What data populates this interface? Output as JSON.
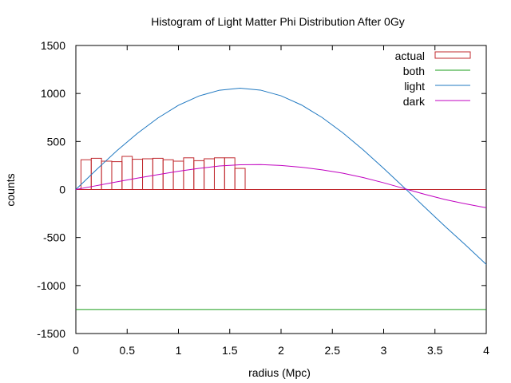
{
  "chart_data": {
    "type": "bar",
    "title": "Histogram of Light Matter Phi Distribution After 0Gy",
    "xlabel": "radius (Mpc)",
    "ylabel": "counts",
    "xlim": [
      0,
      4
    ],
    "ylim": [
      -1500,
      1500
    ],
    "x_ticks": [
      "0",
      "0.5",
      "1",
      "1.5",
      "2",
      "2.5",
      "3",
      "3.5",
      "4"
    ],
    "y_ticks": [
      "-1500",
      "-1000",
      "-500",
      "0",
      "500",
      "1000",
      "1500"
    ],
    "grid": false,
    "legend_position": "top-right",
    "histogram": {
      "name": "actual",
      "color": "#c0282d",
      "bin_width": 0.1,
      "bin_left_edges": [
        0.05,
        0.15,
        0.25,
        0.35,
        0.45,
        0.55,
        0.65,
        0.75,
        0.85,
        0.95,
        1.05,
        1.15,
        1.25,
        1.35,
        1.45,
        1.55
      ],
      "counts": [
        310,
        325,
        295,
        290,
        345,
        315,
        320,
        325,
        310,
        295,
        330,
        300,
        320,
        330,
        330,
        220
      ]
    },
    "series": [
      {
        "name": "both",
        "color": "#1a9e1a",
        "x": [
          0,
          4
        ],
        "y": [
          -1250,
          -1250
        ]
      },
      {
        "name": "light",
        "color": "#1f78c1",
        "x": [
          0,
          0.2,
          0.4,
          0.6,
          0.8,
          1.0,
          1.2,
          1.4,
          1.6,
          1.8,
          2.0,
          2.2,
          2.4,
          2.6,
          2.8,
          3.0,
          3.2,
          3.4,
          3.6,
          3.8,
          4.0
        ],
        "y": [
          0,
          206,
          404,
          585,
          745,
          877,
          974,
          1034,
          1055,
          1035,
          976,
          880,
          750,
          592,
          413,
          220,
          20,
          -184,
          -385,
          -580,
          -780
        ]
      },
      {
        "name": "dark",
        "color": "#c000c0",
        "x": [
          0,
          0.2,
          0.4,
          0.6,
          0.8,
          1.0,
          1.2,
          1.4,
          1.6,
          1.8,
          2.0,
          2.2,
          2.4,
          2.6,
          2.8,
          3.0,
          3.2,
          3.4,
          3.6,
          3.8,
          4.0
        ],
        "y": [
          0,
          40,
          80,
          118,
          155,
          190,
          220,
          245,
          258,
          260,
          250,
          232,
          205,
          170,
          125,
          70,
          10,
          -50,
          -105,
          -150,
          -190
        ]
      }
    ]
  }
}
